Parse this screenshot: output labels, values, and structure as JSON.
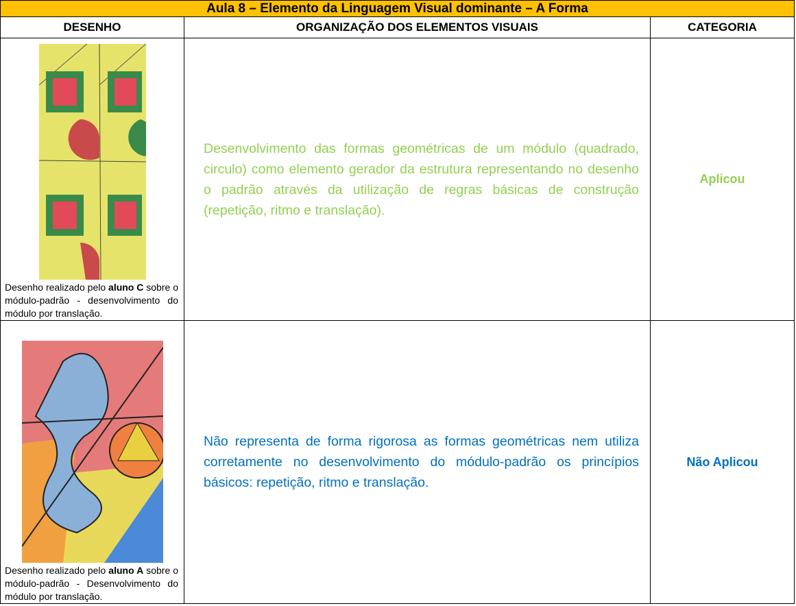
{
  "header": {
    "title": "Aula 8 – Elemento da Linguagem Visual dominante – A Forma"
  },
  "table": {
    "columns": [
      "DESENHO",
      "ORGANIZAÇÃO DOS ELEMENTOS VISUAIS",
      "CATEGORIA"
    ],
    "rows": [
      {
        "caption": [
          "Desenho realizado pelo ",
          "aluno C",
          " sobre o módulo-padrão - desenvolvimento do módulo por translação."
        ],
        "organization": "Desenvolvimento das formas geométricas de um módulo (quadrado, circulo) como elemento gerador da estrutura representando no desenho o padrão através da utilização de regras básicas de construção (repetição, ritmo e translação).",
        "category": "Aplicou"
      },
      {
        "caption": [
          "Desenho realizado pelo ",
          "aluno A",
          " sobre o módulo-padrão - Desenvolvimento do módulo por translação."
        ],
        "organization": "Não representa de forma rigorosa as formas geométricas nem utiliza corretamente no desenvolvimento do módulo-padrão os princípios básicos: repetição, ritmo e translação.",
        "category": "Não Aplicou"
      }
    ]
  }
}
